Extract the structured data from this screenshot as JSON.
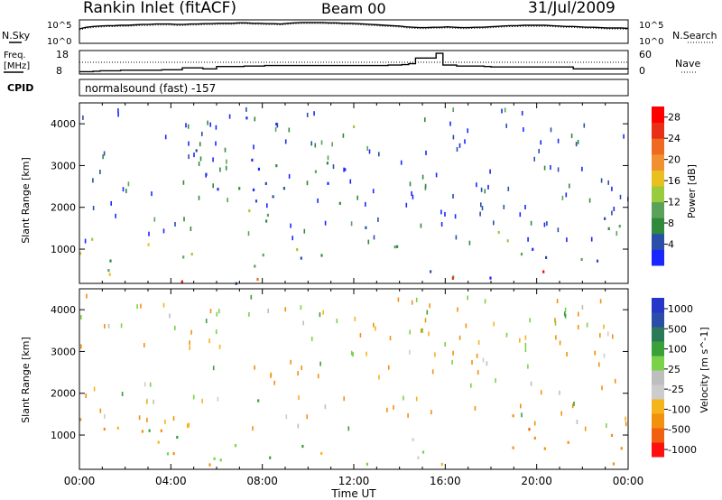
{
  "header": {
    "station": "Rankin Inlet (fitACF)",
    "beam": "Beam 00",
    "date": "31/Jul/2009"
  },
  "noise_panel": {
    "left_label": "N.Sky",
    "left_ticks": [
      "10^5",
      "10^0"
    ],
    "right_ticks": [
      "10^5",
      "10^0"
    ],
    "right_label": "N.Search",
    "values": [
      3.2,
      3.6,
      3.8,
      3.9,
      4.0,
      4.0,
      4.1,
      4.1,
      4.2,
      4.3,
      4.3,
      4.4,
      4.4,
      4.4,
      4.3,
      4.3,
      4.4,
      4.4,
      4.5,
      4.5,
      4.6,
      4.6,
      4.6,
      4.7,
      4.7,
      4.6,
      4.6,
      4.5,
      4.5,
      4.4,
      4.6,
      4.7,
      4.8,
      4.8,
      4.8,
      4.8,
      4.7,
      4.7,
      4.6,
      4.6,
      4.5,
      4.4,
      4.3,
      4.2,
      4.1,
      4.0,
      3.9,
      3.7,
      3.6,
      3.5,
      3.5,
      3.6,
      3.6,
      3.7,
      3.6,
      3.5,
      3.5,
      3.6,
      3.6,
      3.7,
      3.8,
      3.9,
      4.0,
      4.0,
      4.1,
      4.1,
      4.1,
      4.1,
      4.0,
      3.9,
      3.8,
      3.8,
      3.7,
      3.6,
      3.6,
      3.5,
      3.4,
      3.4,
      3.4,
      3.3
    ]
  },
  "freq_panel": {
    "left_label": "Freq.",
    "left_unit": "[MHz]",
    "left_ticks": [
      "18",
      "8"
    ],
    "right_ticks": [
      "60",
      "0"
    ],
    "right_label": "Nave",
    "cpid_label": "CPID",
    "program": "normalsound (fast) -157",
    "freq_values": [
      9.0,
      9.0,
      9.2,
      9.4,
      9.4,
      9.4,
      9.6,
      9.6,
      9.6,
      9.6,
      9.6,
      9.6,
      9.8,
      9.8,
      9.8,
      10.6,
      10.6,
      10.6,
      10.2,
      10.2,
      11.2,
      11.2,
      11.2,
      11.2,
      11.4,
      11.4,
      11.4,
      11.6,
      11.6,
      11.6,
      11.6,
      11.6,
      11.6,
      11.6,
      11.6,
      11.6,
      11.6,
      11.6,
      11.6,
      11.6,
      11.6,
      11.6,
      11.6,
      11.6,
      11.6,
      11.8,
      11.8,
      12.0,
      12.4,
      14.8,
      14.8,
      14.8,
      16.8,
      11.8,
      11.8,
      11.4,
      11.4,
      11.4,
      11.4,
      11.2,
      11.0,
      11.0,
      11.0,
      11.0,
      11.0,
      11.0,
      11.0,
      11.0,
      11.0,
      11.0,
      11.0,
      11.0,
      10.2,
      10.2,
      10.2,
      10.2,
      10.2,
      10.2,
      10.2,
      10.2
    ]
  },
  "time_axis": {
    "ticks": [
      "00:00",
      "04:00",
      "08:00",
      "12:00",
      "16:00",
      "20:00",
      "00:00"
    ],
    "label": "Time UT"
  },
  "colors": {
    "power_scale": [
      "#1a26ff",
      "#2a4fa8",
      "#2f8a3c",
      "#5aa15a",
      "#9acb3c",
      "#e8c020",
      "#f09030",
      "#ee6a20",
      "#e83018",
      "#ff0000"
    ],
    "velocity_scale": [
      "#ff1010",
      "#f06010",
      "#f29010",
      "#f4b41c",
      "#cccccc",
      "#bebebe",
      "#7ad14a",
      "#3aa03a",
      "#2a7a5a",
      "#2a4ea8",
      "#2536c8"
    ]
  },
  "chart_data": [
    {
      "type": "heatmap",
      "title": "Power",
      "ylabel": "Slant Range [km]",
      "xlabel": "Time UT",
      "yticks": [
        "1000",
        "2000",
        "3000",
        "4000"
      ],
      "ylim": [
        180,
        4500
      ],
      "xlim_hours": [
        0,
        24
      ],
      "colorbar": {
        "label": "Power [dB]",
        "ticks": [
          "4",
          "8",
          "12",
          "16",
          "20",
          "24",
          "28"
        ]
      },
      "echo_regions": [
        {
          "t0": 0.0,
          "t1": 5.0,
          "r0": 300,
          "r1": 1500,
          "v": 13
        },
        {
          "t0": 1.8,
          "t1": 3.2,
          "r0": 700,
          "r1": 1300,
          "v": 23
        },
        {
          "t0": 3.8,
          "t1": 5.0,
          "r0": 200,
          "r1": 600,
          "v": 26
        },
        {
          "t0": 6.0,
          "t1": 9.5,
          "r0": 200,
          "r1": 1100,
          "v": 10
        },
        {
          "t0": 7.2,
          "t1": 8.8,
          "r0": 200,
          "r1": 500,
          "v": 25
        },
        {
          "t0": 9.5,
          "t1": 12.5,
          "r0": 500,
          "r1": 1100,
          "v": 9
        },
        {
          "t0": 13.5,
          "t1": 17.5,
          "r0": 200,
          "r1": 1100,
          "v": 9
        },
        {
          "t0": 14.5,
          "t1": 16.3,
          "r0": 250,
          "r1": 700,
          "v": 24
        },
        {
          "t0": 17.5,
          "t1": 22.0,
          "r0": 300,
          "r1": 1700,
          "v": 8
        },
        {
          "t0": 19.6,
          "t1": 21.0,
          "r0": 250,
          "r1": 800,
          "v": 22
        },
        {
          "t0": 22.0,
          "t1": 24.0,
          "r0": 200,
          "r1": 1800,
          "v": 6
        },
        {
          "t0": 5.0,
          "t1": 13.0,
          "r0": 1500,
          "r1": 4200,
          "v": 6
        }
      ]
    },
    {
      "type": "heatmap",
      "title": "Velocity",
      "ylabel": "Slant Range [km]",
      "xlabel": "Time UT",
      "yticks": [
        "1000",
        "2000",
        "3000",
        "4000"
      ],
      "ylim": [
        180,
        4500
      ],
      "xlim_hours": [
        0,
        24
      ],
      "colorbar": {
        "label": "Velocity [m s^-1]",
        "ticks": [
          "1000",
          "500",
          "100",
          "25",
          "-25",
          "-100",
          "-500",
          "-1000"
        ]
      },
      "echo_regions": [
        {
          "t0": 0.0,
          "t1": 5.0,
          "r0": 300,
          "r1": 1500,
          "v": -200
        },
        {
          "t0": 1.0,
          "t1": 4.5,
          "r0": 500,
          "r1": 1200,
          "v": 60
        },
        {
          "t0": 4.0,
          "t1": 9.0,
          "r0": 200,
          "r1": 1000,
          "v": -80
        },
        {
          "t0": 8.0,
          "t1": 13.0,
          "r0": 300,
          "r1": 1000,
          "v": 80
        },
        {
          "t0": 13.5,
          "t1": 18.0,
          "r0": 200,
          "r1": 1000,
          "v": 10
        },
        {
          "t0": 18.5,
          "t1": 24.0,
          "r0": 200,
          "r1": 1500,
          "v": -300
        },
        {
          "t0": 19.0,
          "t1": 20.0,
          "r0": 1100,
          "r1": 1600,
          "v": -900
        },
        {
          "t0": 6.0,
          "t1": 9.0,
          "r0": 1800,
          "r1": 2200,
          "v": 0
        }
      ]
    }
  ]
}
